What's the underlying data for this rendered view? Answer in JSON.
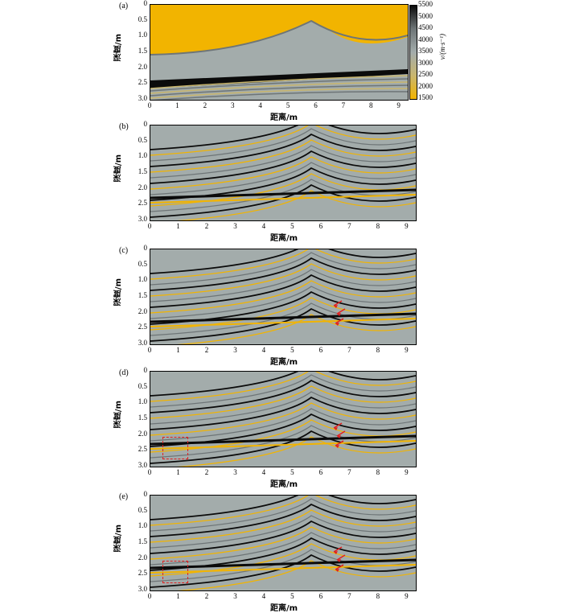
{
  "panels": [
    {
      "label": "(a)",
      "type": "velocity"
    },
    {
      "label": "(b)",
      "type": "image"
    },
    {
      "label": "(c)",
      "type": "image"
    },
    {
      "label": "(d)",
      "type": "image"
    },
    {
      "label": "(e)",
      "type": "image"
    }
  ],
  "axes": {
    "ylabel": "深度/m",
    "xlabel": "距离/m",
    "yticks": [
      "0",
      "0.5",
      "1.0",
      "1.5",
      "2.0",
      "2.5",
      "3.0"
    ],
    "xticks": [
      "0",
      "1",
      "2",
      "3",
      "4",
      "5",
      "6",
      "7",
      "8",
      "9"
    ]
  },
  "colorbar": {
    "label": "v/(m·s⁻¹)",
    "ticks": [
      "5500",
      "5000",
      "4500",
      "4000",
      "3500",
      "3000",
      "2500",
      "2000",
      "1500"
    ]
  },
  "colors": {
    "yellow": "#f2b400",
    "gray": "#a3acab",
    "dark": "#0b0b0b",
    "arrow": "#e02020"
  }
}
